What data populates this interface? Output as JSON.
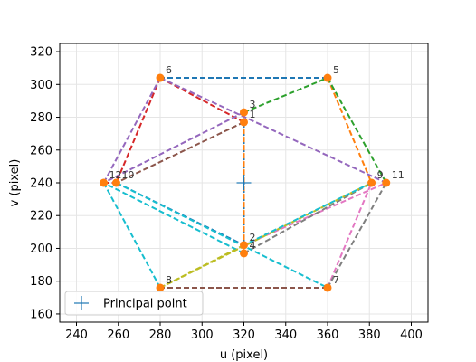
{
  "chart_data": {
    "type": "scatter",
    "xlabel": "u (pixel)",
    "ylabel": "v (pixel)",
    "xlim": [
      232,
      408
    ],
    "ylim": [
      155,
      325
    ],
    "xticks": [
      240,
      260,
      280,
      300,
      320,
      340,
      360,
      380,
      400
    ],
    "yticks": [
      160,
      180,
      200,
      220,
      240,
      260,
      280,
      300,
      320
    ],
    "grid": true,
    "legend": {
      "position": "bottom-left",
      "entries": [
        "Principal point"
      ]
    },
    "principal_point": {
      "x": 320,
      "y": 240,
      "color": "#1f77b4"
    },
    "point_color": "#ff7f0e",
    "points": [
      {
        "id": "1",
        "label": "1",
        "x": 320,
        "y": 277
      },
      {
        "id": "2",
        "label": "2",
        "x": 320,
        "y": 202
      },
      {
        "id": "3",
        "label": "3",
        "x": 320,
        "y": 283
      },
      {
        "id": "4",
        "label": "4",
        "x": 320,
        "y": 197
      },
      {
        "id": "5",
        "label": "5",
        "x": 360,
        "y": 304
      },
      {
        "id": "6",
        "label": "6",
        "x": 280,
        "y": 304
      },
      {
        "id": "7",
        "label": "7",
        "x": 360,
        "y": 176
      },
      {
        "id": "8",
        "label": "8",
        "x": 280,
        "y": 176
      },
      {
        "id": "9",
        "label": "9",
        "x": 381,
        "y": 240
      },
      {
        "id": "10",
        "label": "10",
        "x": 259,
        "y": 240
      },
      {
        "id": "11",
        "label": "11",
        "x": 388,
        "y": 240
      },
      {
        "id": "12",
        "label": "12",
        "x": 253,
        "y": 240
      }
    ],
    "segments": [
      {
        "from": "1",
        "to": "2",
        "color": "#1f77b4"
      },
      {
        "from": "3",
        "to": "4",
        "color": "#ff7f0e"
      },
      {
        "from": "3",
        "to": "5",
        "color": "#2ca02c"
      },
      {
        "from": "1",
        "to": "6",
        "color": "#d62728"
      },
      {
        "from": "3",
        "to": "12",
        "color": "#9467bd"
      },
      {
        "from": "1",
        "to": "10",
        "color": "#8c564b"
      },
      {
        "from": "2",
        "to": "11",
        "color": "#e377c2"
      },
      {
        "from": "4",
        "to": "9",
        "color": "#7f7f7f"
      },
      {
        "from": "2",
        "to": "8",
        "color": "#bcbd22"
      },
      {
        "from": "4",
        "to": "12",
        "color": "#17becf"
      },
      {
        "from": "5",
        "to": "6",
        "color": "#1f77b4"
      },
      {
        "from": "5",
        "to": "9",
        "color": "#ff7f0e"
      },
      {
        "from": "5",
        "to": "11",
        "color": "#2ca02c"
      },
      {
        "from": "6",
        "to": "10",
        "color": "#d62728"
      },
      {
        "from": "6",
        "to": "11",
        "color": "#9467bd"
      },
      {
        "from": "7",
        "to": "8",
        "color": "#8c564b"
      },
      {
        "from": "7",
        "to": "9",
        "color": "#e377c2"
      },
      {
        "from": "7",
        "to": "11",
        "color": "#7f7f7f"
      },
      {
        "from": "8",
        "to": "9",
        "color": "#bcbd22"
      },
      {
        "from": "8",
        "to": "12",
        "color": "#17becf"
      },
      {
        "from": "10",
        "to": "2",
        "color": "#1f77b4"
      },
      {
        "from": "12",
        "to": "6",
        "color": "#9467bd"
      },
      {
        "from": "10",
        "to": "7",
        "color": "#17becf"
      },
      {
        "from": "9",
        "to": "2",
        "color": "#17becf"
      },
      {
        "from": "12",
        "to": "10",
        "color": "#d62728"
      }
    ]
  }
}
